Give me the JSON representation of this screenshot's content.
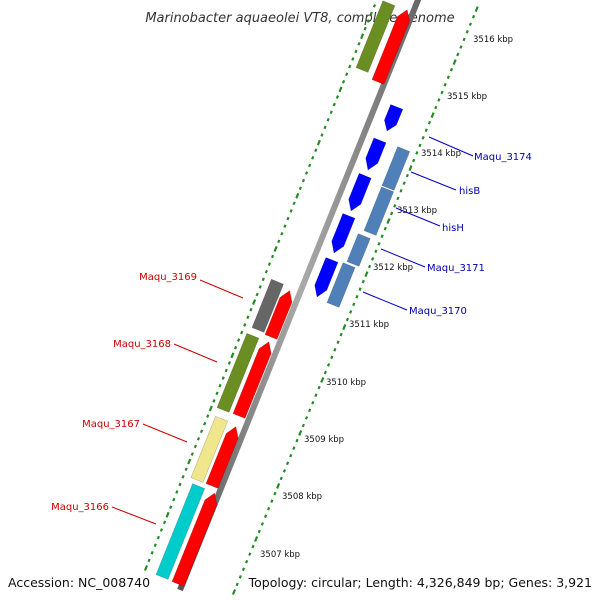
{
  "title": "Marinobacter aquaeolei VT8, complete genome",
  "accession": "Accession: NC_008740",
  "topology": "Topology: circular; Length: 4,326,849 bp; Genes: 3,921",
  "ticks": [
    "3516 kbp",
    "3515 kbp",
    "3514 kbp",
    "3513 kbp",
    "3512 kbp",
    "3511 kbp",
    "3510 kbp",
    "3509 kbp",
    "3508 kbp",
    "3507 kbp"
  ],
  "labels": {
    "maqu_3174": "Maqu_3174",
    "hisB": "hisB",
    "hisH": "hisH",
    "maqu_3171": "Maqu_3171",
    "maqu_3170": "Maqu_3170",
    "maqu_3169": "Maqu_3169",
    "maqu_3168": "Maqu_3168",
    "maqu_3167": "Maqu_3167",
    "maqu_3166": "Maqu_3166"
  },
  "colors": {
    "backbone": "#888888",
    "forward": "#ff0000",
    "reverse": "#0000ff",
    "steelblue": "#4f81b8",
    "olive": "#6b8e23",
    "gray": "#666666",
    "khaki": "#f0e68c",
    "cyan": "#00cccc",
    "dots": "#228b22",
    "labelRed": "#cc0000",
    "labelBlue": "#0000aa"
  }
}
